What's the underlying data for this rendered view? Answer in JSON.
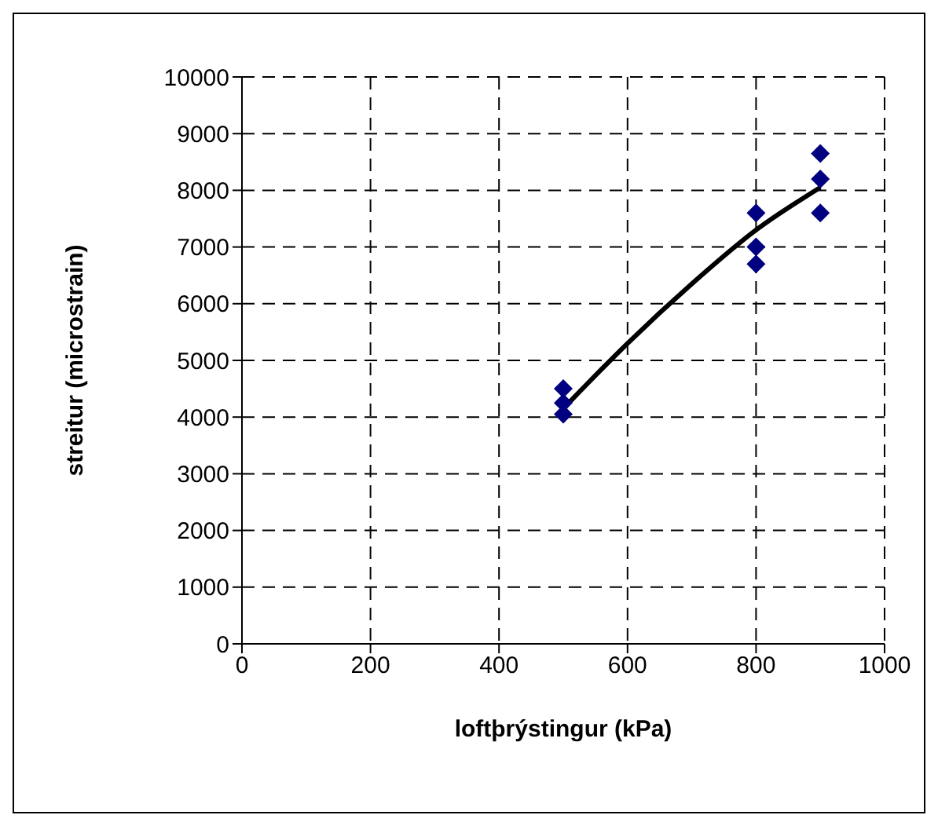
{
  "chart_data": {
    "type": "scatter",
    "xlabel": "loftþrýstingur (kPa)",
    "ylabel": "streitur (microstrain)",
    "xlim": [
      0,
      1000
    ],
    "xticks": [
      0,
      200,
      400,
      600,
      800,
      1000
    ],
    "ylim": [
      0,
      10000
    ],
    "yticks": [
      0,
      1000,
      2000,
      3000,
      4000,
      5000,
      6000,
      7000,
      8000,
      9000,
      10000
    ],
    "grid": true,
    "legend": false,
    "series": [
      {
        "color": "#000080",
        "marker": "diamond",
        "x": [
          500,
          500,
          500,
          800,
          800,
          800,
          900,
          900,
          900
        ],
        "values": [
          4500,
          4250,
          4050,
          7600,
          7000,
          6700,
          8650,
          8200,
          7600
        ]
      },
      {
        "type": "line",
        "color": "#000000",
        "marker": "none",
        "line_style": "solid",
        "x": [
          500,
          600,
          700,
          800,
          900
        ],
        "values": [
          4150,
          5300,
          6350,
          7300,
          8050
        ]
      }
    ]
  }
}
